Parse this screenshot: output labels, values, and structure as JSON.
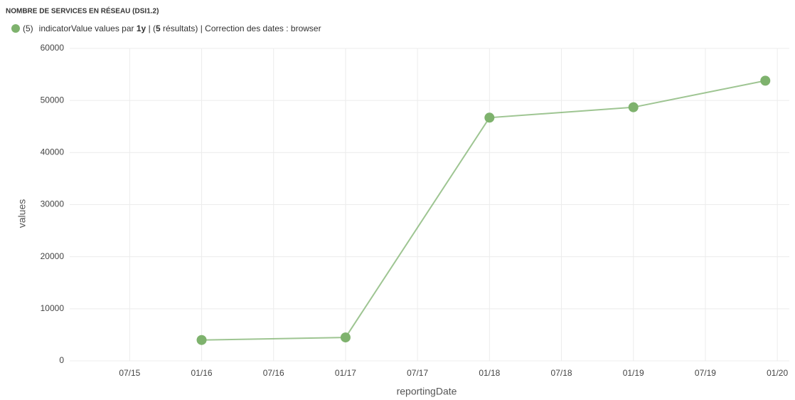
{
  "chart_data": {
    "type": "line",
    "title": "NOMBRE DE SERVICES EN RÉSEAU (DSI1.2)",
    "legend_text": [
      "(5)",
      "indicatorValue values par ",
      "1y",
      " | (",
      "5",
      " résultats) | Correction des dates : browser"
    ],
    "x_label": "reportingDate",
    "y_label": "values",
    "x": [
      "2016-01",
      "2017-01",
      "2018-01",
      "2019-01",
      "2019-12"
    ],
    "series": [
      {
        "name": "indicatorValue",
        "color": "#7eb26d",
        "values": [
          4000,
          4500,
          46700,
          48700,
          53800
        ]
      }
    ],
    "xlim": [
      "2015-02",
      "2020-02"
    ],
    "xticks": [
      {
        "value": "2015-07",
        "label": "07/15"
      },
      {
        "value": "2016-01",
        "label": "01/16"
      },
      {
        "value": "2016-07",
        "label": "07/16"
      },
      {
        "value": "2017-01",
        "label": "01/17"
      },
      {
        "value": "2017-07",
        "label": "07/17"
      },
      {
        "value": "2018-01",
        "label": "01/18"
      },
      {
        "value": "2018-07",
        "label": "07/18"
      },
      {
        "value": "2019-01",
        "label": "01/19"
      },
      {
        "value": "2019-07",
        "label": "07/19"
      },
      {
        "value": "2020-01",
        "label": "01/20"
      }
    ],
    "ylim": [
      0,
      60000
    ],
    "yticks": [
      0,
      10000,
      20000,
      30000,
      40000,
      50000,
      60000
    ],
    "grid": true
  }
}
